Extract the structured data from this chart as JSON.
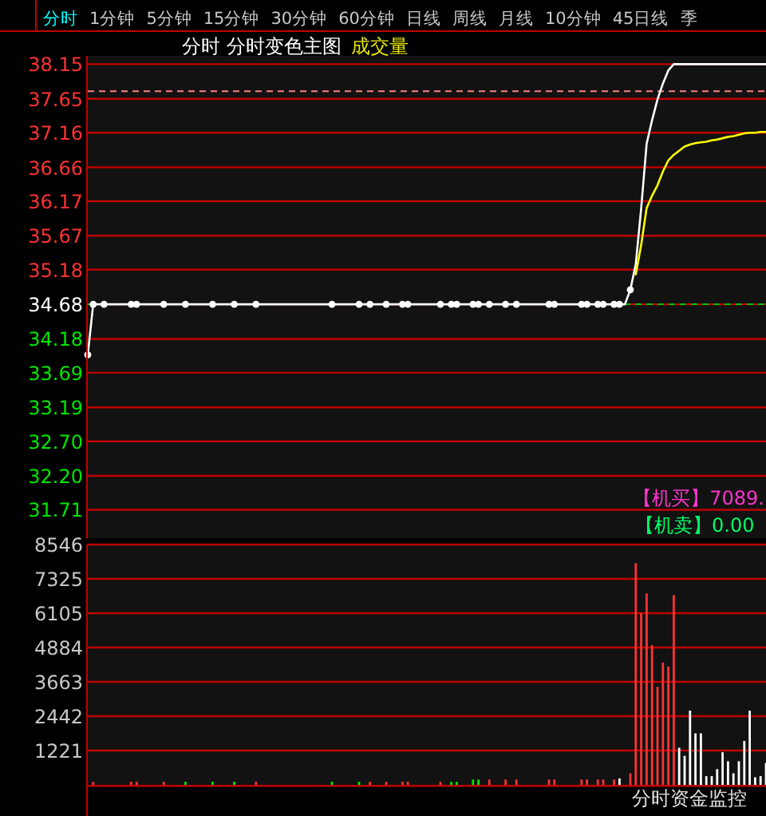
{
  "chart_data": [
    {
      "type": "other",
      "annotations": [
        "分时",
        "1分钟",
        "5分钟",
        "15分钟",
        "30分钟",
        "60分钟",
        "日线",
        "周线",
        "月线",
        "10分钟",
        "45日线",
        "季"
      ]
    },
    {
      "type": "line",
      "title": "分时 分时变色主图",
      "subtitle": "成交量",
      "categories": [
        null,
        null,
        null,
        null,
        null,
        null,
        null,
        null,
        null,
        null,
        null,
        null,
        null,
        null,
        null,
        null,
        null,
        null,
        null,
        null,
        null,
        null,
        null,
        null,
        null,
        null,
        null,
        null,
        null,
        null,
        null,
        null,
        null,
        null,
        null,
        null,
        null,
        null,
        null,
        null,
        null,
        null,
        null,
        null,
        null,
        null,
        null,
        null,
        null,
        null,
        null,
        null,
        null,
        null,
        null,
        null,
        null,
        null,
        null,
        null,
        null,
        null,
        null,
        null,
        null,
        null,
        null,
        null,
        null,
        null,
        null,
        null,
        null,
        null,
        null,
        null,
        null,
        null,
        null,
        null,
        null,
        null,
        null,
        null,
        null,
        null,
        null,
        null,
        null,
        null,
        null,
        null,
        null,
        null,
        null,
        null,
        null,
        null,
        null,
        null,
        null,
        null,
        null,
        null,
        null,
        null,
        null,
        null,
        null,
        null,
        null,
        null,
        null,
        null,
        null,
        null,
        null,
        null,
        null,
        null,
        null,
        null,
        null,
        null,
        null,
        null
      ],
      "ylim": [
        31.3,
        38.27
      ],
      "yticks": [
        31.71,
        {
          "value": 32.2,
          "label": "32.20"
        },
        {
          "value": 32.7,
          "label": "32.70"
        },
        33.19,
        33.69,
        34.18,
        34.68,
        35.18,
        35.67,
        36.17,
        36.66,
        37.16,
        37.65,
        38.15
      ],
      "grid": "y",
      "tick_labels": "y",
      "ref_lines": [
        {
          "axis": "y",
          "value": 34.68,
          "color": "#00c000",
          "line_style": "dashed"
        },
        {
          "axis": "y",
          "value": 37.76,
          "color": "#ff8080",
          "line_style": "dashed"
        }
      ],
      "series": [
        {
          "type": "line",
          "color": "#ffffff",
          "values": [
            33.95,
            34.68,
            34.68,
            34.68,
            34.68,
            34.68,
            34.68,
            34.68,
            34.68,
            34.68,
            34.68,
            34.68,
            34.68,
            34.68,
            34.68,
            34.68,
            34.68,
            34.68,
            34.68,
            34.68,
            34.68,
            34.68,
            34.68,
            34.68,
            34.68,
            34.68,
            34.68,
            34.68,
            34.68,
            34.68,
            34.68,
            34.68,
            34.68,
            34.68,
            34.68,
            34.68,
            34.68,
            34.68,
            34.68,
            34.68,
            34.68,
            34.68,
            34.68,
            34.68,
            34.68,
            34.68,
            34.68,
            34.68,
            34.68,
            34.68,
            34.68,
            34.68,
            34.68,
            34.68,
            34.68,
            34.68,
            34.68,
            34.68,
            34.68,
            34.68,
            34.68,
            34.68,
            34.68,
            34.68,
            34.68,
            34.68,
            34.68,
            34.68,
            34.68,
            34.68,
            34.68,
            34.68,
            34.68,
            34.68,
            34.68,
            34.68,
            34.68,
            34.68,
            34.68,
            34.68,
            34.68,
            34.68,
            34.68,
            34.68,
            34.68,
            34.68,
            34.68,
            34.68,
            34.68,
            34.68,
            34.68,
            34.68,
            34.68,
            34.68,
            34.68,
            34.68,
            34.68,
            34.68,
            34.68,
            34.68,
            34.89,
            35.26,
            36.07,
            37.0,
            37.34,
            37.64,
            37.87,
            38.06,
            38.15,
            38.15,
            38.15,
            38.15,
            38.15,
            38.15,
            38.15,
            38.15,
            38.15,
            38.15,
            38.15,
            38.15,
            38.15,
            38.15,
            38.15,
            38.15,
            38.15,
            38.15
          ]
        },
        {
          "type": "line",
          "color": "#ffff00",
          "values": [
            null,
            null,
            null,
            null,
            null,
            null,
            null,
            null,
            null,
            null,
            null,
            null,
            null,
            null,
            null,
            null,
            null,
            null,
            null,
            null,
            null,
            null,
            null,
            null,
            null,
            null,
            null,
            null,
            null,
            null,
            null,
            null,
            null,
            null,
            null,
            null,
            null,
            null,
            null,
            null,
            null,
            null,
            null,
            null,
            null,
            null,
            null,
            null,
            null,
            null,
            null,
            null,
            null,
            null,
            null,
            null,
            null,
            null,
            null,
            null,
            null,
            null,
            null,
            null,
            null,
            null,
            null,
            null,
            null,
            null,
            null,
            null,
            null,
            null,
            null,
            null,
            null,
            null,
            null,
            null,
            null,
            null,
            null,
            null,
            null,
            null,
            null,
            null,
            null,
            null,
            null,
            null,
            null,
            null,
            null,
            null,
            null,
            null,
            null,
            null,
            null,
            35.11,
            35.54,
            36.07,
            36.25,
            36.4,
            36.6,
            36.76,
            36.84,
            36.9,
            36.96,
            36.99,
            37.01,
            37.02,
            37.03,
            37.05,
            37.06,
            37.08,
            37.1,
            37.11,
            37.13,
            37.15,
            37.16,
            37.16,
            37.17,
            37.17
          ]
        },
        {
          "type": "scatter",
          "color": "#ffffff",
          "marker": "circle",
          "values": [
            33.95,
            34.68,
            null,
            34.68,
            null,
            null,
            null,
            null,
            34.68,
            34.68,
            null,
            null,
            null,
            null,
            34.68,
            null,
            null,
            null,
            34.68,
            null,
            null,
            null,
            null,
            34.68,
            null,
            null,
            null,
            34.68,
            null,
            null,
            null,
            34.68,
            null,
            null,
            null,
            null,
            null,
            null,
            null,
            null,
            null,
            null,
            null,
            null,
            null,
            34.68,
            null,
            null,
            null,
            null,
            34.68,
            null,
            34.68,
            null,
            null,
            34.68,
            null,
            null,
            34.68,
            34.68,
            null,
            null,
            null,
            null,
            null,
            34.68,
            null,
            34.68,
            34.68,
            null,
            null,
            34.68,
            34.68,
            null,
            34.68,
            null,
            null,
            34.68,
            null,
            34.68,
            null,
            null,
            null,
            null,
            null,
            34.68,
            34.68,
            null,
            null,
            null,
            null,
            34.68,
            34.68,
            null,
            34.68,
            34.68,
            null,
            34.68,
            34.68,
            null,
            34.89,
            null,
            null,
            null,
            null,
            null,
            null,
            null,
            null,
            null,
            null,
            null,
            null,
            null,
            null,
            null,
            null,
            null,
            null,
            null,
            null,
            null,
            null,
            null,
            null,
            null
          ]
        }
      ]
    },
    {
      "type": "bar",
      "annotations": [
        "【机买】7089.",
        "【机卖】0.00",
        "分时资金监控"
      ],
      "categories": [
        null,
        null,
        null,
        null,
        null,
        null,
        null,
        null,
        null,
        null,
        null,
        null,
        null,
        null,
        null,
        null,
        null,
        null,
        null,
        null,
        null,
        null,
        null,
        null,
        null,
        null,
        null,
        null,
        null,
        null,
        null,
        null,
        null,
        null,
        null,
        null,
        null,
        null,
        null,
        null,
        null,
        null,
        null,
        null,
        null,
        null,
        null,
        null,
        null,
        null,
        null,
        null,
        null,
        null,
        null,
        null,
        null,
        null,
        null,
        null,
        null,
        null,
        null,
        null,
        null,
        null,
        null,
        null,
        null,
        null,
        null,
        null,
        null,
        null,
        null,
        null,
        null,
        null,
        null,
        null,
        null,
        null,
        null,
        null,
        null,
        null,
        null,
        null,
        null,
        null,
        null,
        null,
        null,
        null,
        null,
        null,
        null,
        null,
        null,
        null,
        null,
        null,
        null,
        null,
        null,
        null,
        null,
        null,
        null,
        null,
        null,
        null,
        null,
        null,
        null,
        null,
        null,
        null,
        null,
        null,
        null,
        null,
        null,
        null,
        null,
        null
      ],
      "ylim": [
        0,
        8546
      ],
      "yticks": [
        1221,
        2442,
        3663,
        4884,
        6105,
        7325,
        8546
      ],
      "grid": "y",
      "tick_labels": "y",
      "values": [
        null,
        110,
        null,
        null,
        null,
        null,
        null,
        null,
        110,
        110,
        null,
        null,
        null,
        null,
        110,
        null,
        null,
        null,
        110,
        null,
        null,
        null,
        null,
        110,
        null,
        null,
        null,
        110,
        null,
        null,
        null,
        110,
        null,
        null,
        null,
        null,
        null,
        null,
        null,
        null,
        null,
        null,
        null,
        null,
        null,
        110,
        null,
        null,
        null,
        null,
        110,
        null,
        110,
        null,
        null,
        110,
        null,
        null,
        110,
        110,
        null,
        null,
        null,
        null,
        null,
        110,
        null,
        110,
        110,
        null,
        null,
        190,
        190,
        null,
        190,
        null,
        null,
        190,
        null,
        190,
        null,
        null,
        null,
        null,
        null,
        190,
        190,
        null,
        null,
        null,
        null,
        190,
        190,
        null,
        190,
        190,
        null,
        190,
        230,
        null,
        410,
        7880,
        6110,
        6810,
        4970,
        3490,
        4350,
        4210,
        6750,
        1320,
        1030,
        2640,
        1830,
        1830,
        310,
        310,
        560,
        1160,
        840,
        410,
        840,
        1560,
        2640,
        270,
        310,
        780
      ],
      "colors": [
        null,
        "#ff3232",
        null,
        null,
        null,
        null,
        null,
        null,
        "#ff3232",
        "#ff3232",
        null,
        null,
        null,
        null,
        "#ff3232",
        null,
        null,
        null,
        "#00e600",
        null,
        null,
        null,
        null,
        "#00e600",
        null,
        null,
        null,
        "#00e600",
        null,
        null,
        null,
        "#ff3232",
        null,
        null,
        null,
        null,
        null,
        null,
        null,
        null,
        null,
        null,
        null,
        null,
        null,
        "#00e600",
        null,
        null,
        null,
        null,
        "#00e600",
        null,
        "#ff3232",
        null,
        null,
        "#ff3232",
        null,
        null,
        "#ff3232",
        "#ff3232",
        null,
        null,
        null,
        null,
        null,
        "#ff3232",
        null,
        "#00e600",
        "#00e600",
        null,
        null,
        "#00e600",
        "#00e600",
        null,
        "#ff3232",
        null,
        null,
        "#ff3232",
        null,
        "#ff3232",
        null,
        null,
        null,
        null,
        null,
        "#ff3232",
        "#ff3232",
        null,
        null,
        null,
        null,
        "#ff3232",
        "#ff3232",
        null,
        "#ff3232",
        "#ff3232",
        null,
        "#ff3232",
        "#ffffff",
        null,
        "#ff3232",
        "#ff3232",
        "#ff3232",
        "#ff3232",
        "#ff3232",
        "#ff3232",
        "#ff3232",
        "#ff3232",
        "#ff3232",
        "#ffffff",
        "#ffffff",
        "#ffffff",
        "#ffffff",
        "#ffffff",
        "#ffffff",
        "#ffffff",
        "#ffffff",
        "#ffffff",
        "#ffffff",
        "#ffffff",
        "#ffffff",
        "#ffffff",
        "#ffffff",
        "#ffffff",
        "#ffffff",
        "#ffffff"
      ]
    }
  ]
}
